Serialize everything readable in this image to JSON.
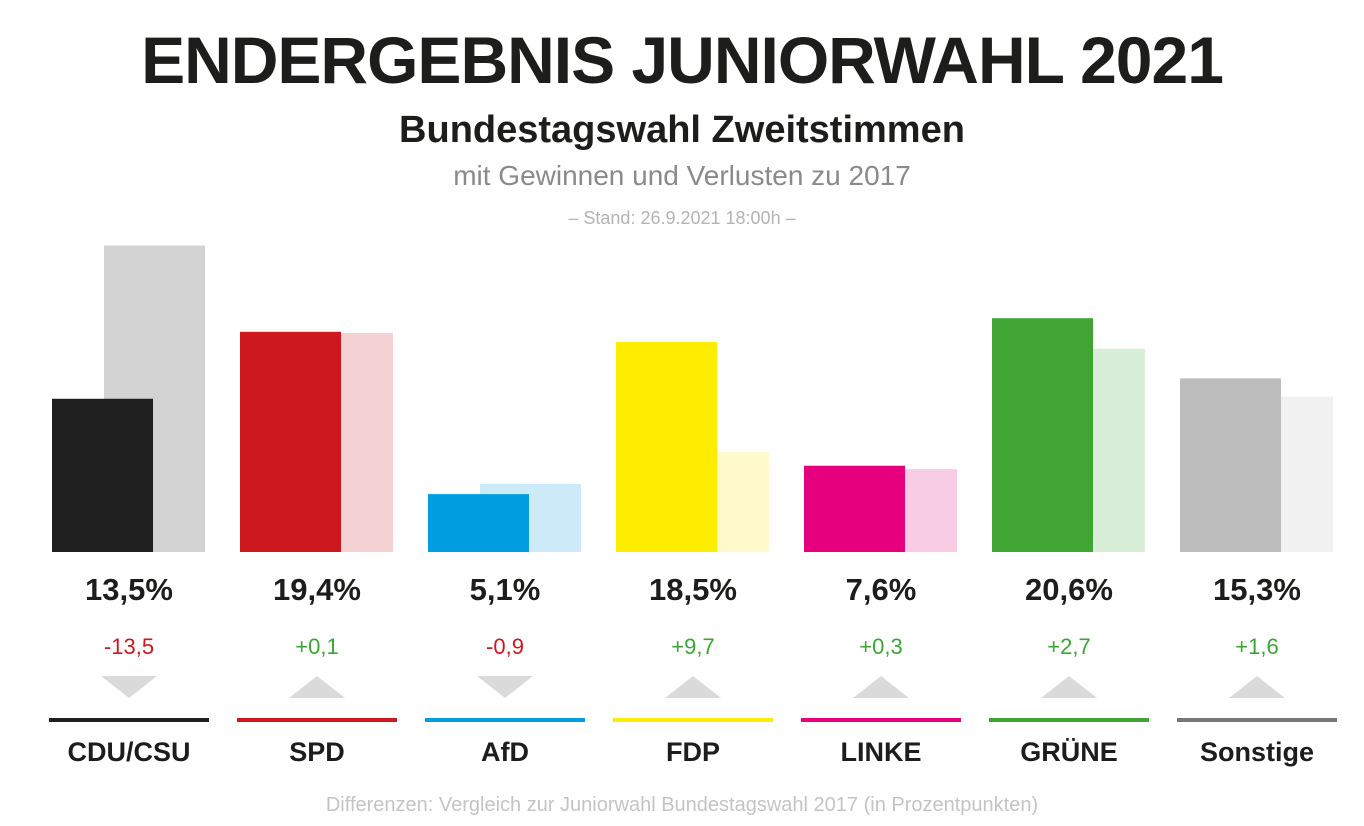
{
  "header": {
    "title": "ENDERGEBNIS JUNIORWAHL 2021",
    "subtitle": "Bundestagswahl Zweitstimmen",
    "subtitle2": "mit Gewinnen und Verlusten zu 2017",
    "stand": "– Stand: 26.9.2021 18:00h –"
  },
  "footnote": "Differenzen: Vergleich zur Juniorwahl Bundestagswahl 2017 (in Prozentpunkten)",
  "chart_data": {
    "type": "bar",
    "title": "ENDERGEBNIS JUNIORWAHL 2021",
    "subtitle": "Bundestagswahl Zweitstimmen",
    "xlabel": "",
    "ylabel": "",
    "ylim": [
      0,
      28
    ],
    "grid": false,
    "categories": [
      "CDU/CSU",
      "SPD",
      "AfD",
      "FDP",
      "LINKE",
      "GRÜNE",
      "Sonstige"
    ],
    "series": [
      {
        "name": "2021",
        "values": [
          13.5,
          19.4,
          5.1,
          18.5,
          7.6,
          20.6,
          15.3
        ]
      },
      {
        "name": "2017",
        "values": [
          27.0,
          19.3,
          6.0,
          8.8,
          7.3,
          17.9,
          13.7
        ]
      }
    ],
    "value_labels": [
      "13,5%",
      "19,4%",
      "5,1%",
      "18,5%",
      "7,6%",
      "20,6%",
      "15,3%"
    ],
    "delta_labels": [
      "-13,5",
      "+0,1",
      "-0,9",
      "+9,7",
      "+0,3",
      "+2,7",
      "+1,6"
    ],
    "deltas": [
      -13.5,
      0.1,
      -0.9,
      9.7,
      0.3,
      2.7,
      1.6
    ],
    "colors": [
      "#1f1f1f",
      "#cc181e",
      "#009ee0",
      "#ffed00",
      "#e6007e",
      "#41a535",
      "#bcbcbc"
    ],
    "colors_2017": [
      "#d2d2d2",
      "#f4d1d2",
      "#cceaf8",
      "#fff9cc",
      "#f9cce5",
      "#d9eed7",
      "#f1f1f1"
    ],
    "line_colors": [
      "#1f1f1f",
      "#cc181e",
      "#009ee0",
      "#ffed00",
      "#e6007e",
      "#41a535",
      "#777777"
    ],
    "gain_color": "#3da535",
    "loss_color": "#cc181e"
  }
}
